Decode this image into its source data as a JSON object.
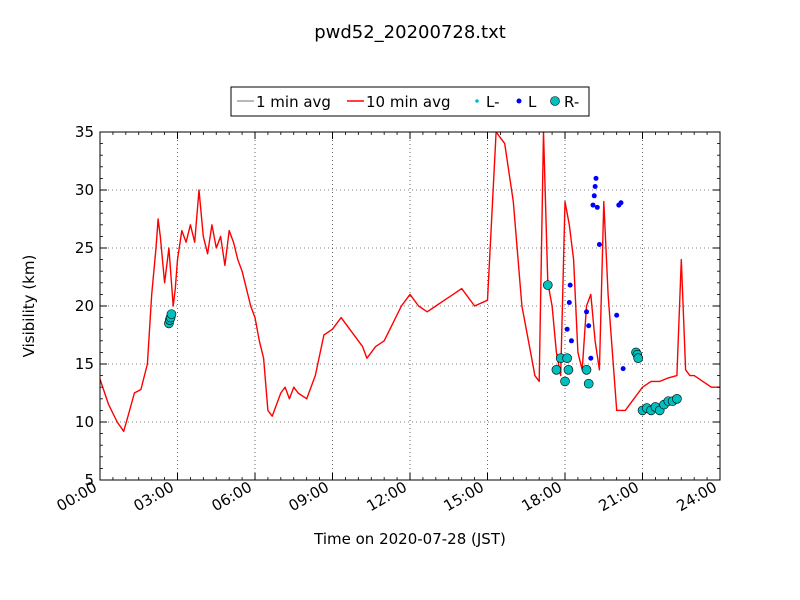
{
  "chart_data": {
    "type": "line",
    "title": "pwd52_20200728.txt",
    "xlabel": "Time on 2020-07-28 (JST)",
    "ylabel": "Visibility (km)",
    "xlim": [
      "00:00",
      "24:00"
    ],
    "ylim": [
      5,
      35
    ],
    "grid": true,
    "legend_position": "top-center",
    "x_tick_labels": [
      "00:00",
      "03:00",
      "06:00",
      "09:00",
      "12:00",
      "15:00",
      "18:00",
      "21:00",
      "24:00"
    ],
    "y_tick_labels": [
      "5",
      "10",
      "15",
      "20",
      "25",
      "30",
      "35"
    ],
    "legend": [
      {
        "name": "1 min avg",
        "marker": "line",
        "color": "#a0a0a0"
      },
      {
        "name": "10 min avg",
        "marker": "line",
        "color": "#ff0000"
      },
      {
        "name": "L-",
        "marker": "small-dot",
        "color": "#00bfbf"
      },
      {
        "name": "L",
        "marker": "dot",
        "color": "#0000ff"
      },
      {
        "name": "R-",
        "marker": "circle",
        "color": "#00bfbf"
      }
    ],
    "series": [
      {
        "name": "10 min avg",
        "color": "#ff0000",
        "x": [
          "00:00",
          "00:20",
          "00:40",
          "00:55",
          "01:05",
          "01:20",
          "01:35",
          "01:50",
          "02:00",
          "02:10",
          "02:15",
          "02:20",
          "02:30",
          "02:40",
          "02:50",
          "02:55",
          "03:00",
          "03:10",
          "03:20",
          "03:30",
          "03:40",
          "03:50",
          "04:00",
          "04:10",
          "04:20",
          "04:30",
          "04:40",
          "04:50",
          "05:00",
          "05:10",
          "05:20",
          "05:30",
          "05:40",
          "05:50",
          "06:00",
          "06:10",
          "06:20",
          "06:30",
          "06:40",
          "06:50",
          "07:00",
          "07:10",
          "07:20",
          "07:30",
          "07:40",
          "08:00",
          "08:20",
          "08:40",
          "09:00",
          "09:20",
          "09:40",
          "10:00",
          "10:10",
          "10:20",
          "10:30",
          "10:40",
          "11:00",
          "11:20",
          "11:40",
          "12:00",
          "12:20",
          "12:40",
          "13:00",
          "13:20",
          "13:40",
          "14:00",
          "14:30",
          "15:00",
          "15:20",
          "15:40",
          "16:00",
          "16:20",
          "16:40",
          "16:50",
          "17:00",
          "17:10",
          "17:20",
          "17:30",
          "17:40",
          "17:50",
          "18:00",
          "18:10",
          "18:20",
          "18:30",
          "18:40",
          "18:50",
          "19:00",
          "19:10",
          "19:20",
          "19:30",
          "19:40",
          "19:50",
          "20:00",
          "20:10",
          "20:20",
          "20:30",
          "20:40",
          "20:50",
          "21:00",
          "21:20",
          "21:40",
          "22:00",
          "22:20",
          "22:30",
          "22:40",
          "22:50",
          "23:00",
          "23:20",
          "23:40",
          "24:00"
        ],
        "y": [
          13.7,
          11.5,
          10.0,
          9.2,
          10.5,
          12.5,
          12.8,
          15.0,
          21.0,
          25.0,
          27.5,
          26.0,
          22.0,
          25.0,
          20.0,
          21.5,
          24.0,
          26.5,
          25.5,
          27.0,
          25.5,
          30.0,
          26.0,
          24.5,
          27.0,
          25.0,
          26.0,
          23.5,
          26.5,
          25.5,
          24.0,
          23.0,
          21.5,
          20.0,
          19.0,
          17.0,
          15.5,
          11.0,
          10.5,
          11.5,
          12.5,
          13.0,
          12.0,
          13.0,
          12.5,
          12.0,
          14.0,
          17.5,
          18.0,
          19.0,
          18.0,
          17.0,
          16.5,
          15.5,
          16.0,
          16.5,
          17.0,
          18.5,
          20.0,
          21.0,
          20.0,
          19.5,
          20.0,
          20.5,
          21.0,
          21.5,
          20.0,
          20.5,
          35.0,
          34.0,
          29.0,
          20.0,
          16.0,
          14.0,
          13.5,
          35.0,
          22.0,
          20.0,
          16.0,
          14.0,
          29.0,
          27.0,
          24.0,
          16.0,
          14.5,
          20.0,
          21.0,
          17.0,
          14.5,
          29.0,
          21.0,
          16.0,
          11.0,
          11.0,
          11.0,
          11.5,
          12.0,
          12.5,
          13.0,
          13.5,
          13.5,
          13.8,
          14.0,
          24.0,
          14.5,
          14.0,
          14.0,
          13.5,
          13.0,
          13.0
        ]
      },
      {
        "name": "L",
        "color": "#0000ff",
        "x": [
          "18:05",
          "18:10",
          "18:12",
          "18:15",
          "18:50",
          "18:55",
          "19:00",
          "19:05",
          "19:08",
          "19:10",
          "19:12",
          "19:15",
          "19:20",
          "20:00",
          "20:05",
          "20:10",
          "20:15"
        ],
        "y": [
          18.0,
          20.3,
          21.8,
          17.0,
          19.5,
          18.3,
          15.5,
          28.7,
          29.5,
          30.3,
          31.0,
          28.5,
          25.3,
          19.2,
          28.7,
          28.9,
          14.6
        ]
      },
      {
        "name": "R-",
        "color": "#00bfbf",
        "x": [
          "02:40",
          "02:42",
          "02:44",
          "02:46",
          "17:20",
          "17:40",
          "17:50",
          "18:00",
          "18:05",
          "18:08",
          "18:50",
          "18:55",
          "20:45",
          "20:48",
          "20:50",
          "21:00",
          "21:10",
          "21:20",
          "21:30",
          "21:40",
          "21:50",
          "22:00",
          "22:10",
          "22:20"
        ],
        "y": [
          18.5,
          18.8,
          19.0,
          19.3,
          21.8,
          14.5,
          15.5,
          13.5,
          15.5,
          14.5,
          14.5,
          13.3,
          16.0,
          15.8,
          15.5,
          11.0,
          11.2,
          11.0,
          11.3,
          11.0,
          11.5,
          11.8,
          11.8,
          12.0
        ]
      }
    ]
  }
}
